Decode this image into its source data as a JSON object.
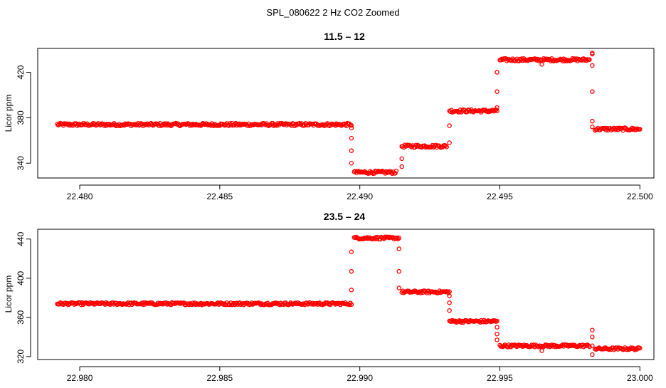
{
  "figure": {
    "suptitle": "SPL_080622  2 Hz CO2 Zoomed"
  },
  "chart_data": [
    {
      "type": "scatter",
      "title": "11.5 – 12",
      "xlabel": "",
      "ylabel": "Licor ppm",
      "xlim": [
        22.4785,
        22.5005
      ],
      "ylim": [
        327,
        441
      ],
      "xticks": [
        22.48,
        22.485,
        22.49,
        22.495,
        22.5
      ],
      "xtick_labels": [
        "22.480",
        "22.485",
        "22.490",
        "22.495",
        "22.500"
      ],
      "yticks": [
        340,
        380,
        420
      ],
      "ytick_labels": [
        "340",
        "380",
        "420"
      ],
      "grid": false,
      "marker": "open-circle",
      "color": "#ff0000",
      "segments": [
        {
          "x_start": 22.4792,
          "x_end": 22.4897,
          "y": 374
        },
        {
          "x_start": 22.4898,
          "x_end": 22.4913,
          "y": 332
        },
        {
          "x_start": 22.4915,
          "x_end": 22.4931,
          "y": 355
        },
        {
          "x_start": 22.4932,
          "x_end": 22.4949,
          "y": 386
        },
        {
          "x_start": 22.495,
          "x_end": 22.4982,
          "y": 431
        },
        {
          "x_start": 22.4984,
          "x_end": 22.5,
          "y": 370
        }
      ],
      "transitions": [
        {
          "x": 22.4897,
          "y": [
            371,
            362,
            351,
            340
          ]
        },
        {
          "x": 22.4915,
          "y": [
            337,
            344
          ]
        },
        {
          "x": 22.4932,
          "y": [
            358,
            373
          ]
        },
        {
          "x": 22.4949,
          "y": [
            389,
            403,
            420
          ]
        },
        {
          "x": 22.4983,
          "y": [
            436,
            426,
            403,
            377,
            372
          ]
        }
      ],
      "outliers": [
        {
          "x": 22.4965,
          "y": 427
        },
        {
          "x": 22.4983,
          "y": 437
        }
      ]
    },
    {
      "type": "scatter",
      "title": "23.5 – 24",
      "xlabel": "",
      "ylabel": "Licor ppm",
      "xlim": [
        22.9785,
        23.0005
      ],
      "ylim": [
        317,
        450
      ],
      "xticks": [
        22.98,
        22.985,
        22.99,
        22.995,
        23.0
      ],
      "xtick_labels": [
        "22.980",
        "22.985",
        "22.990",
        "22.995",
        "23.000"
      ],
      "yticks": [
        320,
        360,
        400,
        440
      ],
      "ytick_labels": [
        "320",
        "360",
        "400",
        "440"
      ],
      "grid": false,
      "marker": "open-circle",
      "color": "#ff0000",
      "segments": [
        {
          "x_start": 22.9792,
          "x_end": 22.9897,
          "y": 374
        },
        {
          "x_start": 22.9898,
          "x_end": 22.9914,
          "y": 441
        },
        {
          "x_start": 22.9915,
          "x_end": 22.9932,
          "y": 386
        },
        {
          "x_start": 22.9932,
          "x_end": 22.9949,
          "y": 356
        },
        {
          "x_start": 22.995,
          "x_end": 22.9982,
          "y": 331
        },
        {
          "x_start": 22.9984,
          "x_end": 23.0,
          "y": 328
        }
      ],
      "transitions": [
        {
          "x": 22.9897,
          "y": [
            388,
            407,
            427
          ]
        },
        {
          "x": 22.9914,
          "y": [
            430,
            407,
            390
          ]
        },
        {
          "x": 22.9932,
          "y": [
            382,
            375,
            367
          ]
        },
        {
          "x": 22.9949,
          "y": [
            350,
            343,
            337
          ]
        },
        {
          "x": 22.9983,
          "y": [
            347,
            340,
            331,
            322
          ]
        }
      ],
      "outliers": [
        {
          "x": 22.9965,
          "y": 326
        }
      ]
    }
  ]
}
